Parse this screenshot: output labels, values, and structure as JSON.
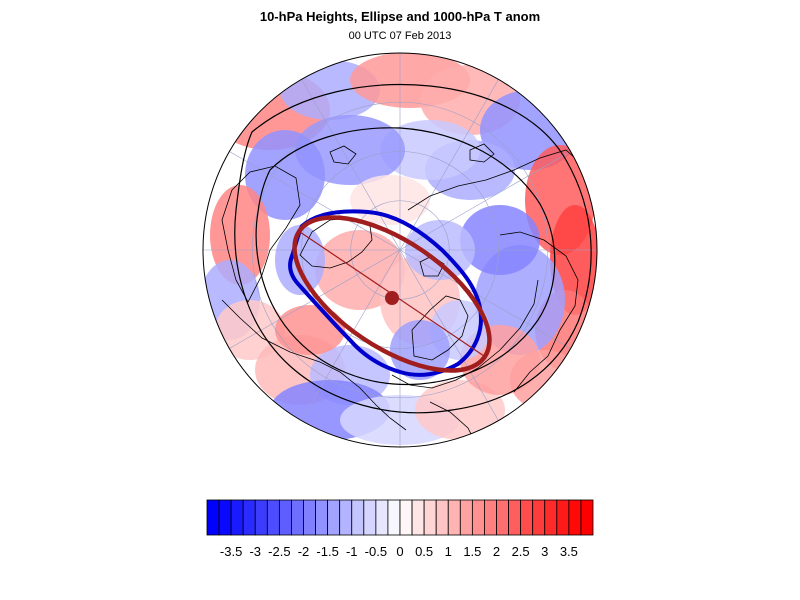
{
  "title": "10-hPa Heights, Ellipse and 1000-hPa T anom",
  "subtitle": "00 UTC 07 Feb 2013",
  "colors": {
    "ellipse_polar_vortex": "#a01e1e",
    "vortex_edge_contour": "#0000cc",
    "coastline": "#000000",
    "height_contour": "#000000",
    "graticule": "#9aa0c8"
  },
  "colorbar": {
    "type": "heatmap",
    "min": -3.75,
    "max": 3.75,
    "interval": 0.25,
    "tick_labels": [
      "-3.5",
      "-3",
      "-2.5",
      "-2",
      "-1.5",
      "-1",
      "-0.5",
      "0",
      "0.5",
      "1",
      "1.5",
      "2",
      "2.5",
      "3",
      "3.5"
    ],
    "tick_values": [
      -3.5,
      -3,
      -2.5,
      -2,
      -1.5,
      -1,
      -0.5,
      0,
      0.5,
      1,
      1.5,
      2,
      2.5,
      3,
      3.5
    ],
    "negative_color": "#0000ff",
    "positive_color": "#ff0000",
    "zero_color": "#ffffff"
  }
}
